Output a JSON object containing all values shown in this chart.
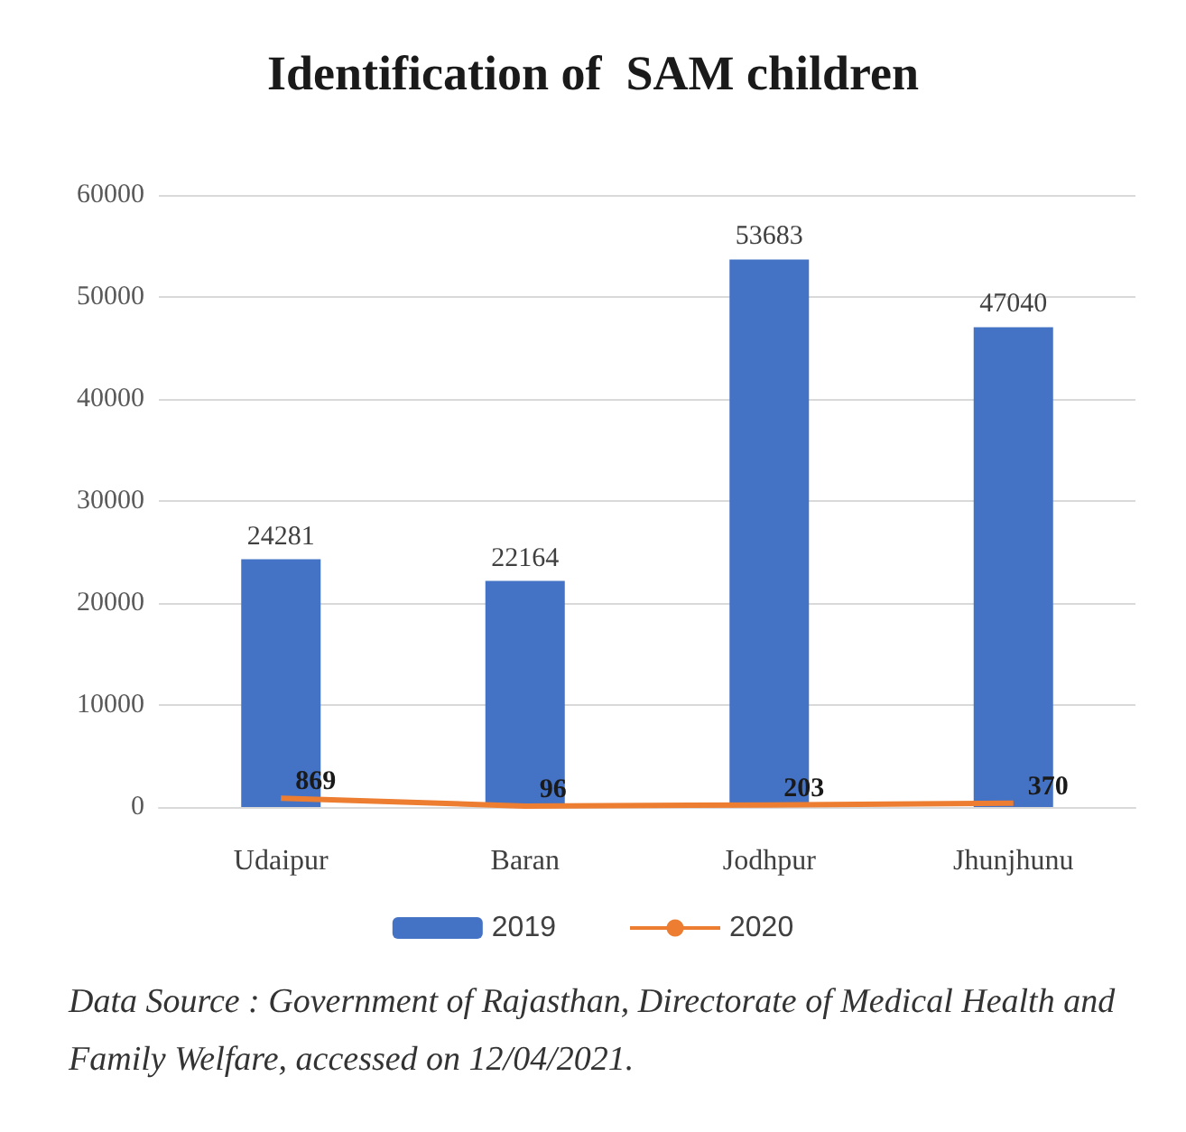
{
  "chart_data": {
    "type": "bar",
    "title": "Identification of  SAM children",
    "categories": [
      "Udaipur",
      "Baran",
      "Jodhpur",
      "Jhunjhunu"
    ],
    "series": [
      {
        "name": "2019",
        "color": "#4472c4",
        "values": [
          24281,
          22164,
          53683,
          47040
        ]
      },
      {
        "name": "2020",
        "type": "line",
        "color": "#ed7d31",
        "values": [
          869,
          96,
          203,
          370
        ]
      }
    ],
    "ylim": [
      0,
      60000
    ],
    "yticks": [
      0,
      10000,
      20000,
      30000,
      40000,
      50000,
      60000
    ],
    "grid": "y",
    "legend": "bottom",
    "data_labels": true,
    "marker": "none",
    "annotations": [
      "Data Source : Government of Rajasthan, Directorate of Medical Health and Family Welfare, accessed on 12/04/2021."
    ]
  }
}
